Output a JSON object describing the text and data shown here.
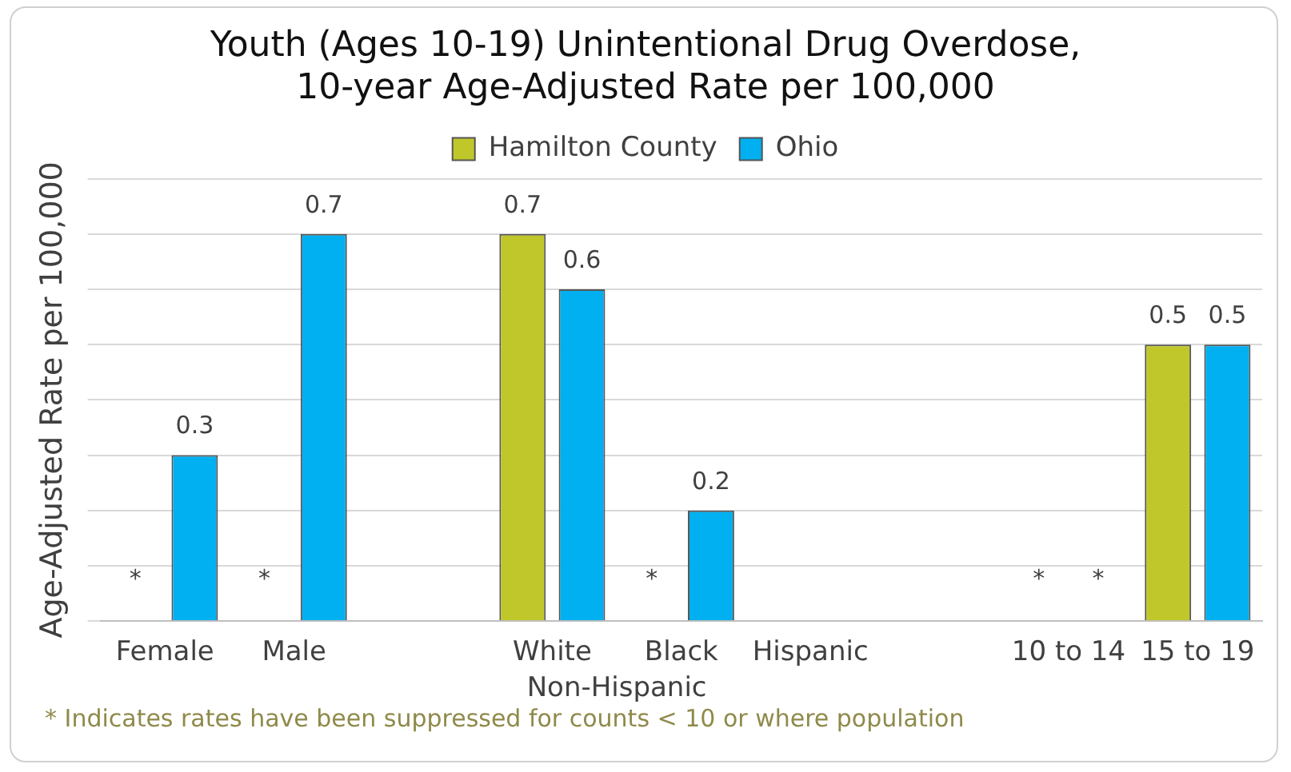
{
  "chart_data": {
    "type": "bar",
    "title": "Youth (Ages 10-19) Unintentional Drug Overdose,\n10-year Age-Adjusted Rate per 100,000",
    "ylabel": "Age-Adjusted Rate per 100,000",
    "categories": [
      "Female",
      "Male",
      null,
      "White",
      "Black",
      "Hispanic",
      null,
      "10 to 14",
      "15 to 19"
    ],
    "series": [
      {
        "name": "Hamilton County",
        "color": "#c0c72a",
        "values": [
          null,
          null,
          null,
          0.7,
          null,
          null,
          null,
          null,
          0.5
        ],
        "value_labels": [
          "*",
          "*",
          null,
          "0.7",
          "*",
          null,
          null,
          "*",
          "0.5"
        ]
      },
      {
        "name": "Ohio",
        "color": "#00b0f0",
        "values": [
          0.3,
          0.7,
          null,
          0.6,
          0.2,
          null,
          null,
          null,
          0.5
        ],
        "value_labels": [
          "0.3",
          "0.7",
          null,
          "0.6",
          "0.2",
          null,
          null,
          "*",
          "0.5"
        ]
      }
    ],
    "ylim": [
      0,
      0.8
    ],
    "yticks": [
      {
        "value": 0,
        "label": null
      },
      {
        "value": 0.1,
        "label": null
      },
      {
        "value": 0.2,
        "label": null
      },
      {
        "value": 0.3,
        "label": null
      },
      {
        "value": 0.4,
        "label": null
      },
      {
        "value": 0.5,
        "label": null
      },
      {
        "value": 0.6,
        "label": null
      },
      {
        "value": 0.7,
        "label": null
      },
      {
        "value": 0.8,
        "label": null
      }
    ],
    "grid": "y",
    "legend": "top",
    "annotations": [
      "Non-Hispanic",
      "* Indicates rates have been suppressed for counts < 10 or where population"
    ]
  }
}
